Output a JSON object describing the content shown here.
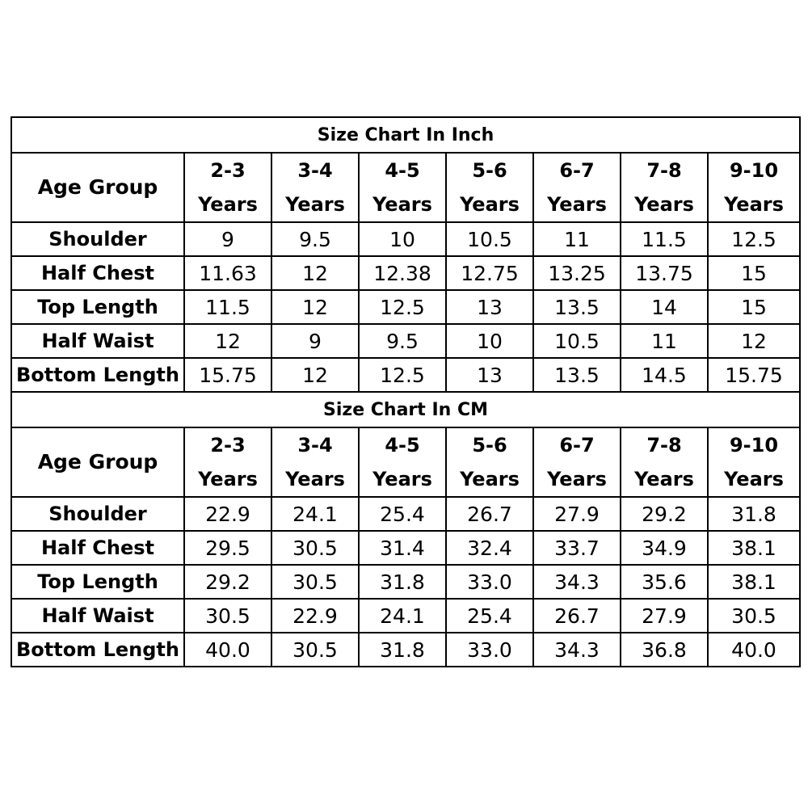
{
  "inch": {
    "title": "Size Chart In Inch",
    "header_label": "Age Group",
    "columns": [
      {
        "top": "2-3",
        "bottom": "Years"
      },
      {
        "top": "3-4",
        "bottom": "Years"
      },
      {
        "top": "4-5",
        "bottom": "Years"
      },
      {
        "top": "5-6",
        "bottom": "Years"
      },
      {
        "top": "6-7",
        "bottom": "Years"
      },
      {
        "top": "7-8",
        "bottom": "Years"
      },
      {
        "top": "9-10",
        "bottom": "Years"
      }
    ],
    "rows": [
      {
        "label": "Shoulder",
        "values": [
          "9",
          "9.5",
          "10",
          "10.5",
          "11",
          "11.5",
          "12.5"
        ]
      },
      {
        "label": "Half Chest",
        "values": [
          "11.63",
          "12",
          "12.38",
          "12.75",
          "13.25",
          "13.75",
          "15"
        ]
      },
      {
        "label": "Top Length",
        "values": [
          "11.5",
          "12",
          "12.5",
          "13",
          "13.5",
          "14",
          "15"
        ]
      },
      {
        "label": "Half Waist",
        "values": [
          "12",
          "9",
          "9.5",
          "10",
          "10.5",
          "11",
          "12"
        ]
      },
      {
        "label": "Bottom Length",
        "values": [
          "15.75",
          "12",
          "12.5",
          "13",
          "13.5",
          "14.5",
          "15.75"
        ]
      }
    ]
  },
  "cm": {
    "title": "Size Chart In CM",
    "header_label": "Age Group",
    "columns": [
      {
        "top": "2-3",
        "bottom": "Years"
      },
      {
        "top": "3-4",
        "bottom": "Years"
      },
      {
        "top": "4-5",
        "bottom": "Years"
      },
      {
        "top": "5-6",
        "bottom": "Years"
      },
      {
        "top": "6-7",
        "bottom": "Years"
      },
      {
        "top": "7-8",
        "bottom": "Years"
      },
      {
        "top": "9-10",
        "bottom": "Years"
      }
    ],
    "rows": [
      {
        "label": "Shoulder",
        "values": [
          "22.9",
          "24.1",
          "25.4",
          "26.7",
          "27.9",
          "29.2",
          "31.8"
        ]
      },
      {
        "label": "Half Chest",
        "values": [
          "29.5",
          "30.5",
          "31.4",
          "32.4",
          "33.7",
          "34.9",
          "38.1"
        ]
      },
      {
        "label": "Top Length",
        "values": [
          "29.2",
          "30.5",
          "31.8",
          "33.0",
          "34.3",
          "35.6",
          "38.1"
        ]
      },
      {
        "label": "Half Waist",
        "values": [
          "30.5",
          "22.9",
          "24.1",
          "25.4",
          "26.7",
          "27.9",
          "30.5"
        ]
      },
      {
        "label": "Bottom Length",
        "values": [
          "40.0",
          "30.5",
          "31.8",
          "33.0",
          "34.3",
          "36.8",
          "40.0"
        ]
      }
    ]
  }
}
